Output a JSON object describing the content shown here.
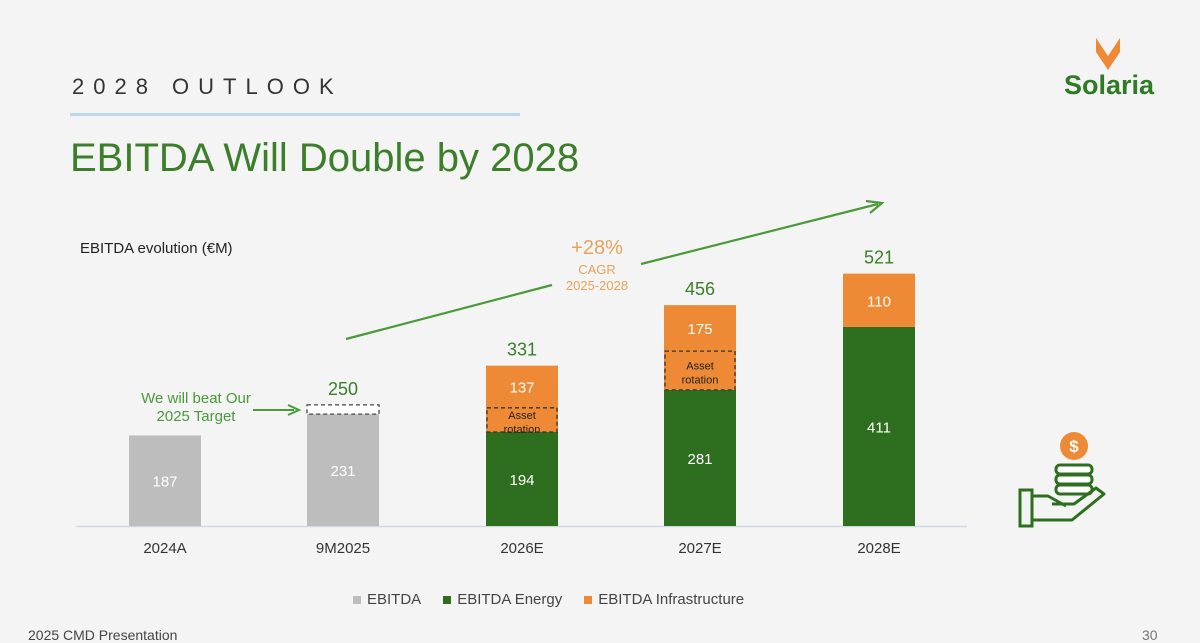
{
  "header": {
    "section": "2028 OUTLOOK",
    "title": "EBITDA Will Double by 2028",
    "logo_text": "Solaria"
  },
  "footer": {
    "left": "2025 CMD Presentation",
    "right": "30"
  },
  "colors": {
    "grey": "#bdbdbd",
    "energy": "#2e6f1f",
    "infrastructure": "#ee8a35",
    "title_green": "#3b7f2a",
    "annotation_orange": "#e4a45a"
  },
  "chart_data": {
    "type": "bar",
    "title": "EBITDA evolution (€M)",
    "categories": [
      "2024A",
      "9M2025",
      "2026E",
      "2027E",
      "2028E"
    ],
    "series": [
      {
        "name": "EBITDA",
        "values": [
          187,
          231,
          null,
          null,
          null
        ]
      },
      {
        "name": "EBITDA Energy",
        "values": [
          null,
          null,
          194,
          281,
          411
        ]
      },
      {
        "name": "EBITDA Infrastructure",
        "values": [
          null,
          null,
          137,
          175,
          110
        ]
      }
    ],
    "totals": [
      null,
      250,
      331,
      456,
      521
    ],
    "asset_rotation_label": "Asset rotation",
    "asset_rotation_values": [
      null,
      null,
      50,
      80,
      null
    ],
    "target_box_value": 19,
    "annotations": {
      "target_note": "We will beat Our 2025 Target",
      "cagr_value": "+28%",
      "cagr_label": "CAGR",
      "cagr_period": "2025-2028"
    },
    "ylim": [
      0,
      560
    ],
    "legend_position": "bottom"
  }
}
